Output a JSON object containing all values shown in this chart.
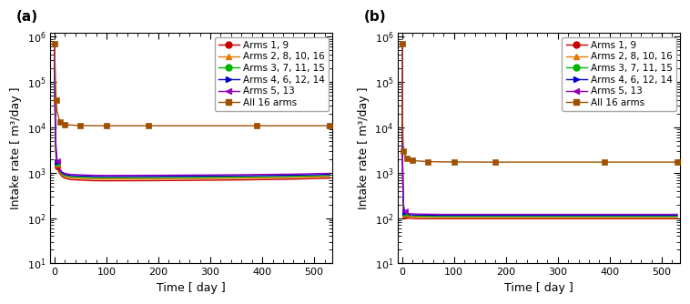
{
  "panel_labels": [
    "(a)",
    "(b)"
  ],
  "xlabel": "Time [ day ]",
  "ylabel": "Intake rate [ m³/day ]",
  "xlim": [
    -8,
    535
  ],
  "ylim": [
    10,
    1200000
  ],
  "xticks": [
    0,
    100,
    200,
    300,
    400,
    500
  ],
  "legend_entries": [
    {
      "label": "Arms 1, 9",
      "color": "#c80000",
      "marker": "o"
    },
    {
      "label": "Arms 2, 8, 10, 16",
      "color": "#e87800",
      "marker": "^"
    },
    {
      "label": "Arms 3, 7, 11, 15",
      "color": "#00b400",
      "marker": "o"
    },
    {
      "label": "Arms 4, 6, 12, 14",
      "color": "#0000c8",
      "marker": ">"
    },
    {
      "label": "Arms 5, 13",
      "color": "#9600be",
      "marker": "<"
    },
    {
      "label": "All 16 arms",
      "color": "#a05000",
      "marker": "s"
    }
  ],
  "panel_a": {
    "series": [
      {
        "name": "Arms 1, 9",
        "color": "#c80000",
        "marker": "o",
        "x": [
          0,
          0.01,
          0.5,
          1,
          2,
          3,
          5,
          7,
          10,
          15,
          20,
          30,
          50,
          75,
          100,
          150,
          200,
          260,
          350,
          450,
          530
        ],
        "y": [
          700000,
          700000,
          80000,
          25000,
          4500,
          2200,
          1400,
          1100,
          950,
          820,
          760,
          710,
          690,
          670,
          665,
          668,
          672,
          680,
          695,
          720,
          760
        ],
        "marker_x": [
          5
        ],
        "marker_y": [
          1400
        ]
      },
      {
        "name": "Arms 2, 8, 10, 16",
        "color": "#e87800",
        "marker": "^",
        "x": [
          0,
          0.01,
          0.5,
          1,
          2,
          3,
          5,
          7,
          10,
          15,
          20,
          30,
          50,
          75,
          100,
          150,
          200,
          260,
          350,
          450,
          530
        ],
        "y": [
          700000,
          700000,
          90000,
          28000,
          5200,
          2500,
          1550,
          1200,
          1020,
          880,
          820,
          770,
          750,
          730,
          725,
          728,
          732,
          740,
          755,
          780,
          820
        ],
        "marker_x": [
          5
        ],
        "marker_y": [
          1550
        ]
      },
      {
        "name": "Arms 3, 7, 11, 15",
        "color": "#00b400",
        "marker": "o",
        "x": [
          0,
          0.01,
          0.5,
          1,
          2,
          3,
          5,
          7,
          10,
          15,
          20,
          30,
          50,
          75,
          100,
          150,
          200,
          260,
          350,
          450,
          530
        ],
        "y": [
          700000,
          700000,
          100000,
          32000,
          5800,
          2700,
          1650,
          1280,
          1080,
          930,
          870,
          820,
          800,
          780,
          775,
          778,
          782,
          790,
          805,
          830,
          870
        ],
        "marker_x": [
          5
        ],
        "marker_y": [
          1650
        ]
      },
      {
        "name": "Arms 4, 6, 12, 14",
        "color": "#0000c8",
        "marker": ">",
        "x": [
          0,
          0.01,
          0.5,
          1,
          2,
          3,
          5,
          7,
          10,
          15,
          20,
          30,
          50,
          75,
          100,
          150,
          200,
          260,
          350,
          450,
          530
        ],
        "y": [
          700000,
          700000,
          110000,
          35000,
          6200,
          2900,
          1750,
          1360,
          1140,
          980,
          920,
          870,
          850,
          830,
          825,
          828,
          832,
          840,
          855,
          880,
          920
        ],
        "marker_x": [
          5
        ],
        "marker_y": [
          1750
        ]
      },
      {
        "name": "Arms 5, 13",
        "color": "#9600be",
        "marker": "<",
        "x": [
          0,
          0.01,
          0.5,
          1,
          2,
          3,
          5,
          7,
          10,
          15,
          20,
          30,
          50,
          75,
          100,
          150,
          200,
          260,
          350,
          450,
          530
        ],
        "y": [
          700000,
          700000,
          120000,
          38000,
          6800,
          3100,
          1850,
          1440,
          1200,
          1030,
          970,
          920,
          900,
          880,
          875,
          878,
          882,
          890,
          905,
          930,
          970
        ],
        "marker_x": [
          5
        ],
        "marker_y": [
          1850
        ]
      },
      {
        "name": "All 16 arms",
        "color": "#a05000",
        "marker": "s",
        "x": [
          0,
          0.01,
          0.5,
          1,
          2,
          3,
          5,
          10,
          15,
          20,
          30,
          50,
          75,
          100,
          130,
          180,
          260,
          390,
          530
        ],
        "y": [
          700000,
          700000,
          500000,
          250000,
          90000,
          40000,
          22000,
          13500,
          12200,
          11700,
          11300,
          11000,
          10900,
          10900,
          10900,
          10900,
          10900,
          10900,
          10900
        ],
        "marker_x": [
          0,
          3,
          10,
          20,
          50,
          100,
          180,
          390,
          530
        ],
        "marker_y": [
          700000,
          40000,
          13500,
          11700,
          11000,
          10900,
          10900,
          10900,
          10900
        ]
      }
    ]
  },
  "panel_b": {
    "series": [
      {
        "name": "Arms 1, 9",
        "color": "#c80000",
        "marker": "o",
        "x": [
          0,
          0.01,
          0.5,
          1,
          2,
          3,
          5,
          7,
          10,
          15,
          20,
          30,
          50,
          75,
          100,
          150,
          200,
          260,
          350,
          450,
          530
        ],
        "y": [
          700000,
          700000,
          8000,
          1200,
          230,
          140,
          115,
          106,
          101,
          99,
          98,
          97,
          97,
          97,
          97,
          97,
          97,
          97,
          97,
          97,
          97
        ],
        "marker_x": [
          5
        ],
        "marker_y": [
          115
        ]
      },
      {
        "name": "Arms 2, 8, 10, 16",
        "color": "#e87800",
        "marker": "^",
        "x": [
          0,
          0.01,
          0.5,
          1,
          2,
          3,
          5,
          7,
          10,
          15,
          20,
          30,
          50,
          75,
          100,
          150,
          200,
          260,
          350,
          450,
          530
        ],
        "y": [
          700000,
          700000,
          9000,
          1400,
          260,
          155,
          123,
          114,
          108,
          106,
          105,
          104,
          103,
          102,
          102,
          102,
          102,
          102,
          102,
          102,
          102
        ],
        "marker_x": [
          5
        ],
        "marker_y": [
          123
        ]
      },
      {
        "name": "Arms 3, 7, 11, 15",
        "color": "#00b400",
        "marker": "o",
        "x": [
          0,
          0.01,
          0.5,
          1,
          2,
          3,
          5,
          7,
          10,
          15,
          20,
          30,
          50,
          75,
          100,
          150,
          200,
          260,
          350,
          450,
          530
        ],
        "y": [
          700000,
          700000,
          10000,
          1600,
          290,
          168,
          131,
          121,
          115,
          113,
          112,
          111,
          110,
          109,
          109,
          109,
          109,
          109,
          109,
          109,
          109
        ],
        "marker_x": [
          5
        ],
        "marker_y": [
          131
        ]
      },
      {
        "name": "Arms 4, 6, 12, 14",
        "color": "#0000c8",
        "marker": ">",
        "x": [
          0,
          0.01,
          0.5,
          1,
          2,
          3,
          5,
          7,
          10,
          15,
          20,
          30,
          50,
          75,
          100,
          150,
          200,
          260,
          350,
          450,
          530
        ],
        "y": [
          700000,
          700000,
          11000,
          1800,
          310,
          178,
          138,
          127,
          121,
          119,
          118,
          117,
          116,
          115,
          115,
          115,
          115,
          115,
          115,
          115,
          115
        ],
        "marker_x": [
          5
        ],
        "marker_y": [
          138
        ]
      },
      {
        "name": "Arms 5, 13",
        "color": "#9600be",
        "marker": "<",
        "x": [
          0,
          0.01,
          0.5,
          1,
          2,
          3,
          5,
          7,
          10,
          15,
          20,
          30,
          50,
          75,
          100,
          150,
          200,
          260,
          350,
          450,
          530
        ],
        "y": [
          700000,
          700000,
          12000,
          2000,
          330,
          188,
          145,
          133,
          127,
          125,
          124,
          123,
          122,
          121,
          121,
          121,
          121,
          121,
          121,
          121,
          121
        ],
        "marker_x": [
          5
        ],
        "marker_y": [
          145
        ]
      },
      {
        "name": "All 16 arms",
        "color": "#a05000",
        "marker": "s",
        "x": [
          0,
          0.01,
          0.5,
          1,
          2,
          3,
          5,
          10,
          15,
          20,
          30,
          50,
          75,
          100,
          130,
          180,
          260,
          390,
          530
        ],
        "y": [
          700000,
          700000,
          60000,
          15000,
          5000,
          3000,
          2500,
          2100,
          1950,
          1870,
          1820,
          1760,
          1740,
          1730,
          1725,
          1720,
          1720,
          1720,
          1720
        ],
        "marker_x": [
          0,
          3,
          10,
          20,
          50,
          100,
          180,
          390,
          530
        ],
        "marker_y": [
          700000,
          3000,
          2100,
          1870,
          1760,
          1730,
          1720,
          1720,
          1720
        ]
      }
    ]
  }
}
